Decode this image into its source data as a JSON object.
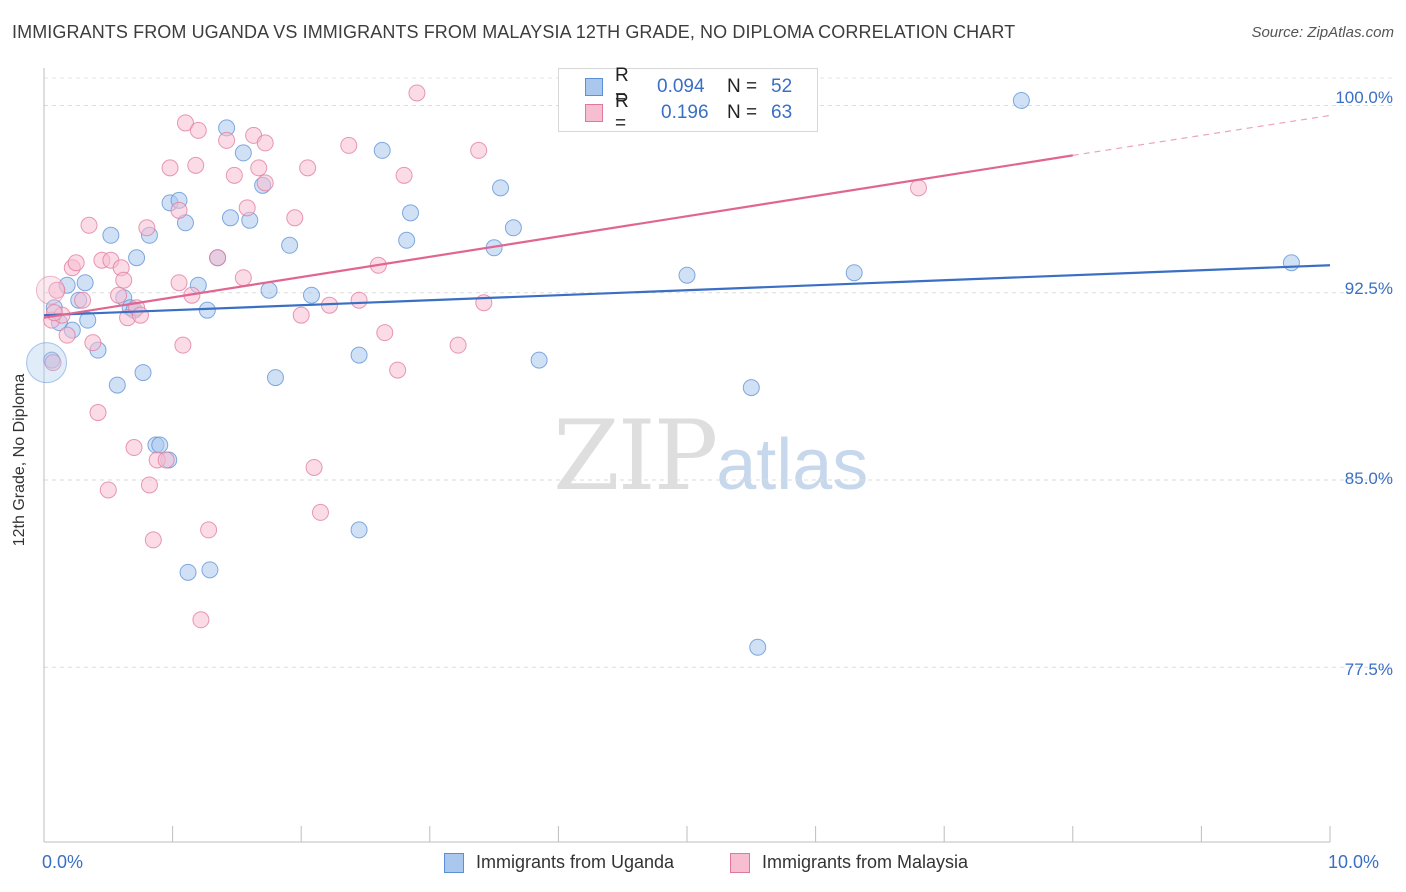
{
  "title": "IMMIGRANTS FROM UGANDA VS IMMIGRANTS FROM MALAYSIA 12TH GRADE, NO DIPLOMA CORRELATION CHART",
  "source": "Source: ZipAtlas.com",
  "watermark": {
    "zip": "ZIP",
    "atlas": "atlas"
  },
  "legend": {
    "uganda": {
      "r_label": "R =",
      "r_value": "0.094",
      "n_label": "N =",
      "n_value": "52"
    },
    "malaysia": {
      "r_label": "R =",
      "r_value": "0.196",
      "n_label": "N =",
      "n_value": "63"
    }
  },
  "bottom_legend": {
    "uganda": "Immigrants from Uganda",
    "malaysia": "Immigrants from Malaysia"
  },
  "colors": {
    "uganda_fill": "#aac8ee",
    "uganda_stroke": "#5b8fd6",
    "uganda_line": "#3a6fc4",
    "malaysia_fill": "#f7bdd0",
    "malaysia_stroke": "#e0789e",
    "malaysia_line": "#e06691",
    "tick_text": "#3a6fc4"
  },
  "chart_data": {
    "type": "scatter",
    "title": "IMMIGRANTS FROM UGANDA VS IMMIGRANTS FROM MALAYSIA 12TH GRADE, NO DIPLOMA CORRELATION CHART",
    "xlabel": "",
    "ylabel": "12th Grade, No Diploma",
    "xlim": [
      0,
      10
    ],
    "ylim": [
      70.5,
      101.5
    ],
    "x_tick_labels": [
      "0.0%",
      "10.0%"
    ],
    "y_ticks": [
      77.5,
      85.0,
      92.5,
      100.0
    ],
    "y_tick_labels": [
      "77.5%",
      "85.0%",
      "92.5%",
      "100.0%"
    ],
    "grid": true,
    "legend_position": "top-center",
    "series": [
      {
        "name": "Immigrants from Uganda",
        "trend": {
          "x0": 0,
          "y0": 91.6,
          "x1": 10,
          "y1": 93.6
        },
        "points": [
          [
            0.06,
            89.8
          ],
          [
            0.08,
            91.9
          ],
          [
            0.12,
            91.3
          ],
          [
            0.18,
            92.8
          ],
          [
            0.22,
            91.0
          ],
          [
            0.27,
            92.2
          ],
          [
            0.32,
            92.9
          ],
          [
            0.34,
            91.4
          ],
          [
            0.42,
            90.2
          ],
          [
            0.52,
            94.8
          ],
          [
            0.57,
            88.8
          ],
          [
            0.62,
            92.3
          ],
          [
            0.67,
            91.9
          ],
          [
            0.7,
            91.8
          ],
          [
            0.72,
            93.9
          ],
          [
            0.77,
            89.3
          ],
          [
            0.82,
            94.8
          ],
          [
            0.87,
            86.4
          ],
          [
            0.9,
            86.4
          ],
          [
            0.97,
            85.8
          ],
          [
            0.98,
            96.1
          ],
          [
            1.05,
            96.2
          ],
          [
            1.1,
            95.3
          ],
          [
            1.12,
            81.3
          ],
          [
            1.2,
            92.8
          ],
          [
            1.27,
            91.8
          ],
          [
            1.29,
            81.4
          ],
          [
            1.35,
            93.9
          ],
          [
            1.42,
            99.1
          ],
          [
            1.45,
            95.5
          ],
          [
            1.55,
            98.1
          ],
          [
            1.6,
            95.4
          ],
          [
            1.7,
            96.8
          ],
          [
            1.75,
            92.6
          ],
          [
            1.8,
            89.1
          ],
          [
            1.91,
            94.4
          ],
          [
            2.08,
            92.4
          ],
          [
            2.45,
            83.0
          ],
          [
            2.45,
            90.0
          ],
          [
            2.63,
            98.2
          ],
          [
            2.82,
            94.6
          ],
          [
            2.85,
            95.7
          ],
          [
            3.5,
            94.3
          ],
          [
            3.55,
            96.7
          ],
          [
            3.65,
            95.1
          ],
          [
            3.85,
            89.8
          ],
          [
            5.0,
            93.2
          ],
          [
            5.5,
            88.7
          ],
          [
            5.55,
            78.3
          ],
          [
            6.3,
            93.3
          ],
          [
            7.6,
            100.2
          ],
          [
            9.7,
            93.7
          ]
        ]
      },
      {
        "name": "Immigrants from Malaysia",
        "trend": {
          "x0": 0,
          "y0": 91.5,
          "x1": 8.0,
          "y1": 98.0
        },
        "trend_dashed_to": {
          "x": 10,
          "y": 99.6
        },
        "points": [
          [
            0.06,
            91.4
          ],
          [
            0.07,
            89.7
          ],
          [
            0.1,
            92.6
          ],
          [
            0.14,
            91.6
          ],
          [
            0.18,
            90.8
          ],
          [
            0.22,
            93.5
          ],
          [
            0.25,
            93.7
          ],
          [
            0.3,
            92.2
          ],
          [
            0.35,
            95.2
          ],
          [
            0.38,
            90.5
          ],
          [
            0.42,
            87.7
          ],
          [
            0.45,
            93.8
          ],
          [
            0.52,
            93.8
          ],
          [
            0.5,
            84.6
          ],
          [
            0.58,
            92.4
          ],
          [
            0.6,
            93.5
          ],
          [
            0.62,
            93.0
          ],
          [
            0.65,
            91.5
          ],
          [
            0.7,
            86.3
          ],
          [
            0.72,
            91.9
          ],
          [
            0.75,
            91.6
          ],
          [
            0.8,
            95.1
          ],
          [
            0.82,
            84.8
          ],
          [
            0.85,
            82.6
          ],
          [
            0.88,
            85.8
          ],
          [
            0.95,
            85.8
          ],
          [
            0.98,
            97.5
          ],
          [
            1.05,
            95.8
          ],
          [
            1.05,
            92.9
          ],
          [
            1.08,
            90.4
          ],
          [
            1.1,
            99.3
          ],
          [
            1.15,
            92.4
          ],
          [
            1.18,
            97.6
          ],
          [
            1.2,
            99.0
          ],
          [
            1.22,
            79.4
          ],
          [
            1.28,
            83.0
          ],
          [
            1.35,
            93.9
          ],
          [
            1.42,
            98.6
          ],
          [
            1.48,
            97.2
          ],
          [
            1.55,
            93.1
          ],
          [
            1.58,
            95.9
          ],
          [
            1.63,
            98.8
          ],
          [
            1.67,
            97.5
          ],
          [
            1.72,
            98.5
          ],
          [
            1.72,
            96.9
          ],
          [
            1.95,
            95.5
          ],
          [
            2.0,
            91.6
          ],
          [
            2.05,
            97.5
          ],
          [
            2.1,
            85.5
          ],
          [
            2.15,
            83.7
          ],
          [
            2.22,
            92.0
          ],
          [
            2.37,
            98.4
          ],
          [
            2.45,
            92.2
          ],
          [
            2.6,
            93.6
          ],
          [
            2.65,
            90.9
          ],
          [
            2.75,
            89.4
          ],
          [
            2.8,
            97.2
          ],
          [
            2.9,
            100.5
          ],
          [
            3.22,
            90.4
          ],
          [
            3.38,
            98.2
          ],
          [
            3.42,
            92.1
          ],
          [
            6.8,
            96.7
          ],
          [
            0.08,
            91.7
          ]
        ]
      }
    ]
  }
}
